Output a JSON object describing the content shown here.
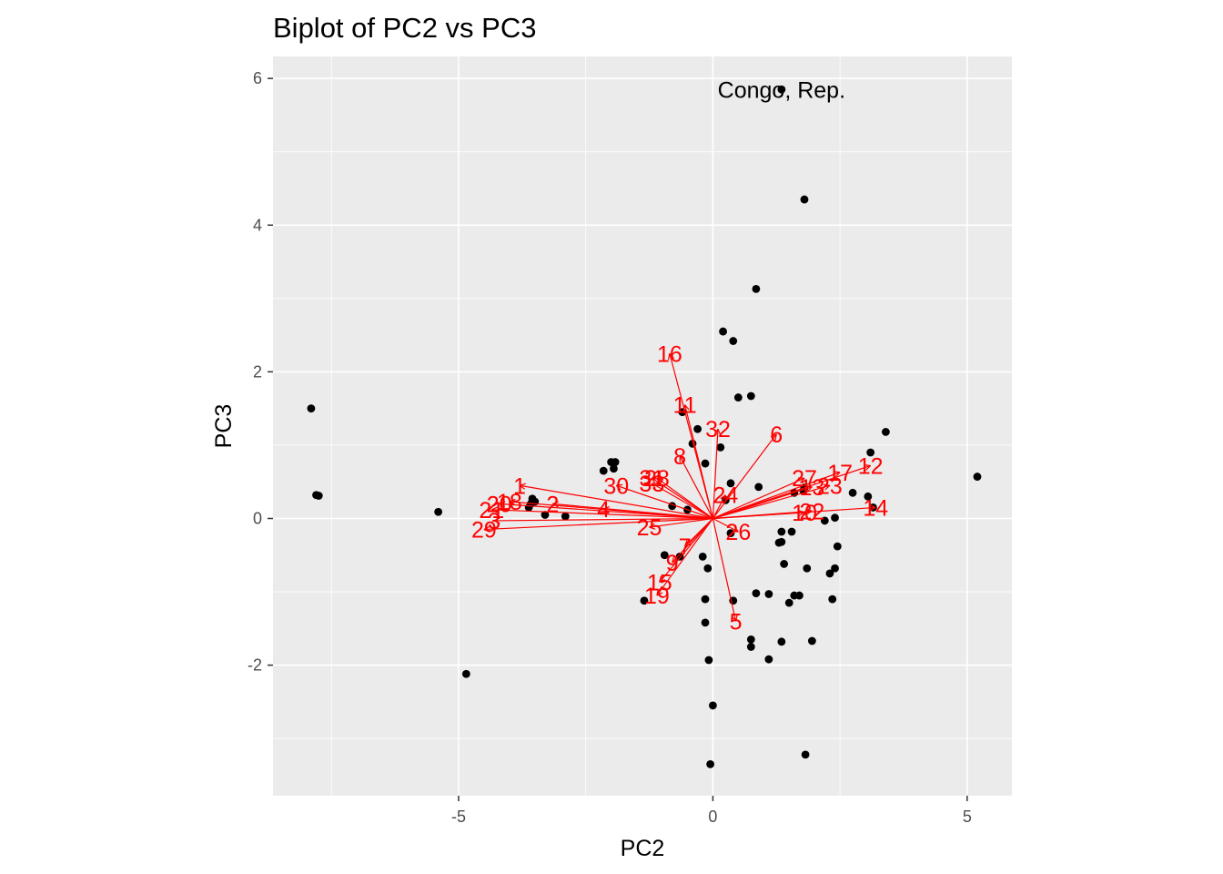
{
  "chart_data": {
    "type": "scatter",
    "title": "Biplot of PC2 vs PC3",
    "xlabel": "PC2",
    "ylabel": "PC3",
    "xlim": [
      -8.65,
      5.88
    ],
    "ylim": [
      -3.78,
      6.3
    ],
    "xticks": [
      -5,
      0,
      5
    ],
    "xtick_labels": [
      "-5",
      "0",
      "5"
    ],
    "yticks": [
      -2,
      0,
      2,
      4,
      6
    ],
    "ytick_labels": [
      "-2",
      "0",
      "2",
      "4",
      "6"
    ],
    "grid": true,
    "panel_background": "#ebebeb",
    "point_color": "#000000",
    "arrow_color": "#ff0000",
    "points": [
      [
        -7.9,
        1.5
      ],
      [
        -7.8,
        0.32
      ],
      [
        -7.75,
        0.31
      ],
      [
        -5.4,
        0.09
      ],
      [
        -4.85,
        -2.12
      ],
      [
        -3.55,
        0.27
      ],
      [
        -3.5,
        0.23
      ],
      [
        -3.58,
        0.2
      ],
      [
        -3.62,
        0.15
      ],
      [
        -3.3,
        0.05
      ],
      [
        -2.9,
        0.03
      ],
      [
        -2.15,
        0.65
      ],
      [
        -2.0,
        0.77
      ],
      [
        -1.92,
        0.77
      ],
      [
        -1.95,
        0.68
      ],
      [
        -1.35,
        -1.12
      ],
      [
        -0.8,
        0.17
      ],
      [
        -0.95,
        -0.5
      ],
      [
        -0.65,
        -0.52
      ],
      [
        -0.6,
        1.45
      ],
      [
        -0.3,
        1.22
      ],
      [
        -0.15,
        0.75
      ],
      [
        -0.4,
        1.02
      ],
      [
        -0.5,
        0.12
      ],
      [
        -0.2,
        -0.52
      ],
      [
        -0.1,
        -0.68
      ],
      [
        -0.15,
        -1.1
      ],
      [
        -0.15,
        -1.42
      ],
      [
        -0.08,
        -1.93
      ],
      [
        0.0,
        -2.55
      ],
      [
        -0.05,
        -3.35
      ],
      [
        0.15,
        0.97
      ],
      [
        0.2,
        2.55
      ],
      [
        0.4,
        2.42
      ],
      [
        0.5,
        1.65
      ],
      [
        0.75,
        1.67
      ],
      [
        0.85,
        3.13
      ],
      [
        0.35,
        -0.2
      ],
      [
        0.4,
        -1.12
      ],
      [
        0.35,
        0.48
      ],
      [
        0.25,
        0.25
      ],
      [
        0.9,
        0.43
      ],
      [
        0.85,
        -1.02
      ],
      [
        1.1,
        -1.03
      ],
      [
        1.35,
        5.85
      ],
      [
        1.8,
        4.35
      ],
      [
        0.75,
        -1.65
      ],
      [
        0.75,
        -1.75
      ],
      [
        1.1,
        -1.92
      ],
      [
        1.35,
        -1.68
      ],
      [
        1.35,
        -0.32
      ],
      [
        1.3,
        -0.33
      ],
      [
        1.4,
        -0.62
      ],
      [
        1.5,
        -1.15
      ],
      [
        1.6,
        -1.05
      ],
      [
        1.7,
        -1.05
      ],
      [
        1.85,
        -0.68
      ],
      [
        1.95,
        -1.67
      ],
      [
        1.82,
        -3.22
      ],
      [
        1.35,
        -0.18
      ],
      [
        1.55,
        -0.18
      ],
      [
        1.78,
        0.38
      ],
      [
        1.8,
        0.42
      ],
      [
        1.6,
        0.35
      ],
      [
        2.2,
        -0.03
      ],
      [
        2.4,
        0.01
      ],
      [
        2.3,
        -0.75
      ],
      [
        2.4,
        -0.68
      ],
      [
        2.35,
        -1.1
      ],
      [
        2.45,
        -0.38
      ],
      [
        2.75,
        0.35
      ],
      [
        3.05,
        0.3
      ],
      [
        3.15,
        0.15
      ],
      [
        3.1,
        0.9
      ],
      [
        3.4,
        1.18
      ],
      [
        5.2,
        0.57
      ]
    ],
    "point_labels": [
      {
        "text": "Congo, Rep.",
        "x": 1.35,
        "y": 5.85
      }
    ],
    "loadings": [
      {
        "label": "1",
        "x": -3.8,
        "y": 0.45
      },
      {
        "label": "2",
        "x": -3.15,
        "y": 0.2
      },
      {
        "label": "3",
        "x": -4.3,
        "y": -0.03
      },
      {
        "label": "4",
        "x": -2.15,
        "y": 0.13
      },
      {
        "label": "5",
        "x": 0.45,
        "y": -1.4
      },
      {
        "label": "6",
        "x": 1.25,
        "y": 1.15
      },
      {
        "label": "7",
        "x": -0.55,
        "y": -0.38
      },
      {
        "label": "8",
        "x": -0.65,
        "y": 0.85
      },
      {
        "label": "9",
        "x": -0.8,
        "y": -0.6
      },
      {
        "label": "10",
        "x": 1.8,
        "y": 0.08
      },
      {
        "label": "11",
        "x": -0.55,
        "y": 1.55
      },
      {
        "label": "12",
        "x": 3.1,
        "y": 0.72
      },
      {
        "label": "13",
        "x": 1.95,
        "y": 0.43
      },
      {
        "label": "14",
        "x": 3.2,
        "y": 0.15
      },
      {
        "label": "15",
        "x": -1.05,
        "y": -0.87
      },
      {
        "label": "16",
        "x": -0.85,
        "y": 2.25
      },
      {
        "label": "17",
        "x": 2.5,
        "y": 0.63
      },
      {
        "label": "18",
        "x": -4.0,
        "y": 0.23
      },
      {
        "label": "19",
        "x": -1.1,
        "y": -1.05
      },
      {
        "label": "20",
        "x": -4.2,
        "y": 0.2
      },
      {
        "label": "21",
        "x": -4.35,
        "y": 0.12
      },
      {
        "label": "22",
        "x": 1.95,
        "y": 0.1
      },
      {
        "label": "23",
        "x": 2.3,
        "y": 0.45
      },
      {
        "label": "24",
        "x": 0.25,
        "y": 0.32
      },
      {
        "label": "25",
        "x": -1.25,
        "y": -0.12
      },
      {
        "label": "26",
        "x": 0.5,
        "y": -0.18
      },
      {
        "label": "27",
        "x": 1.8,
        "y": 0.55
      },
      {
        "label": "28",
        "x": -1.1,
        "y": 0.55
      },
      {
        "label": "29",
        "x": -4.5,
        "y": -0.15
      },
      {
        "label": "30",
        "x": -1.9,
        "y": 0.45
      },
      {
        "label": "31",
        "x": -1.2,
        "y": 0.55
      },
      {
        "label": "32",
        "x": 0.1,
        "y": 1.22
      },
      {
        "label": "33",
        "x": -1.2,
        "y": 0.48
      }
    ]
  }
}
